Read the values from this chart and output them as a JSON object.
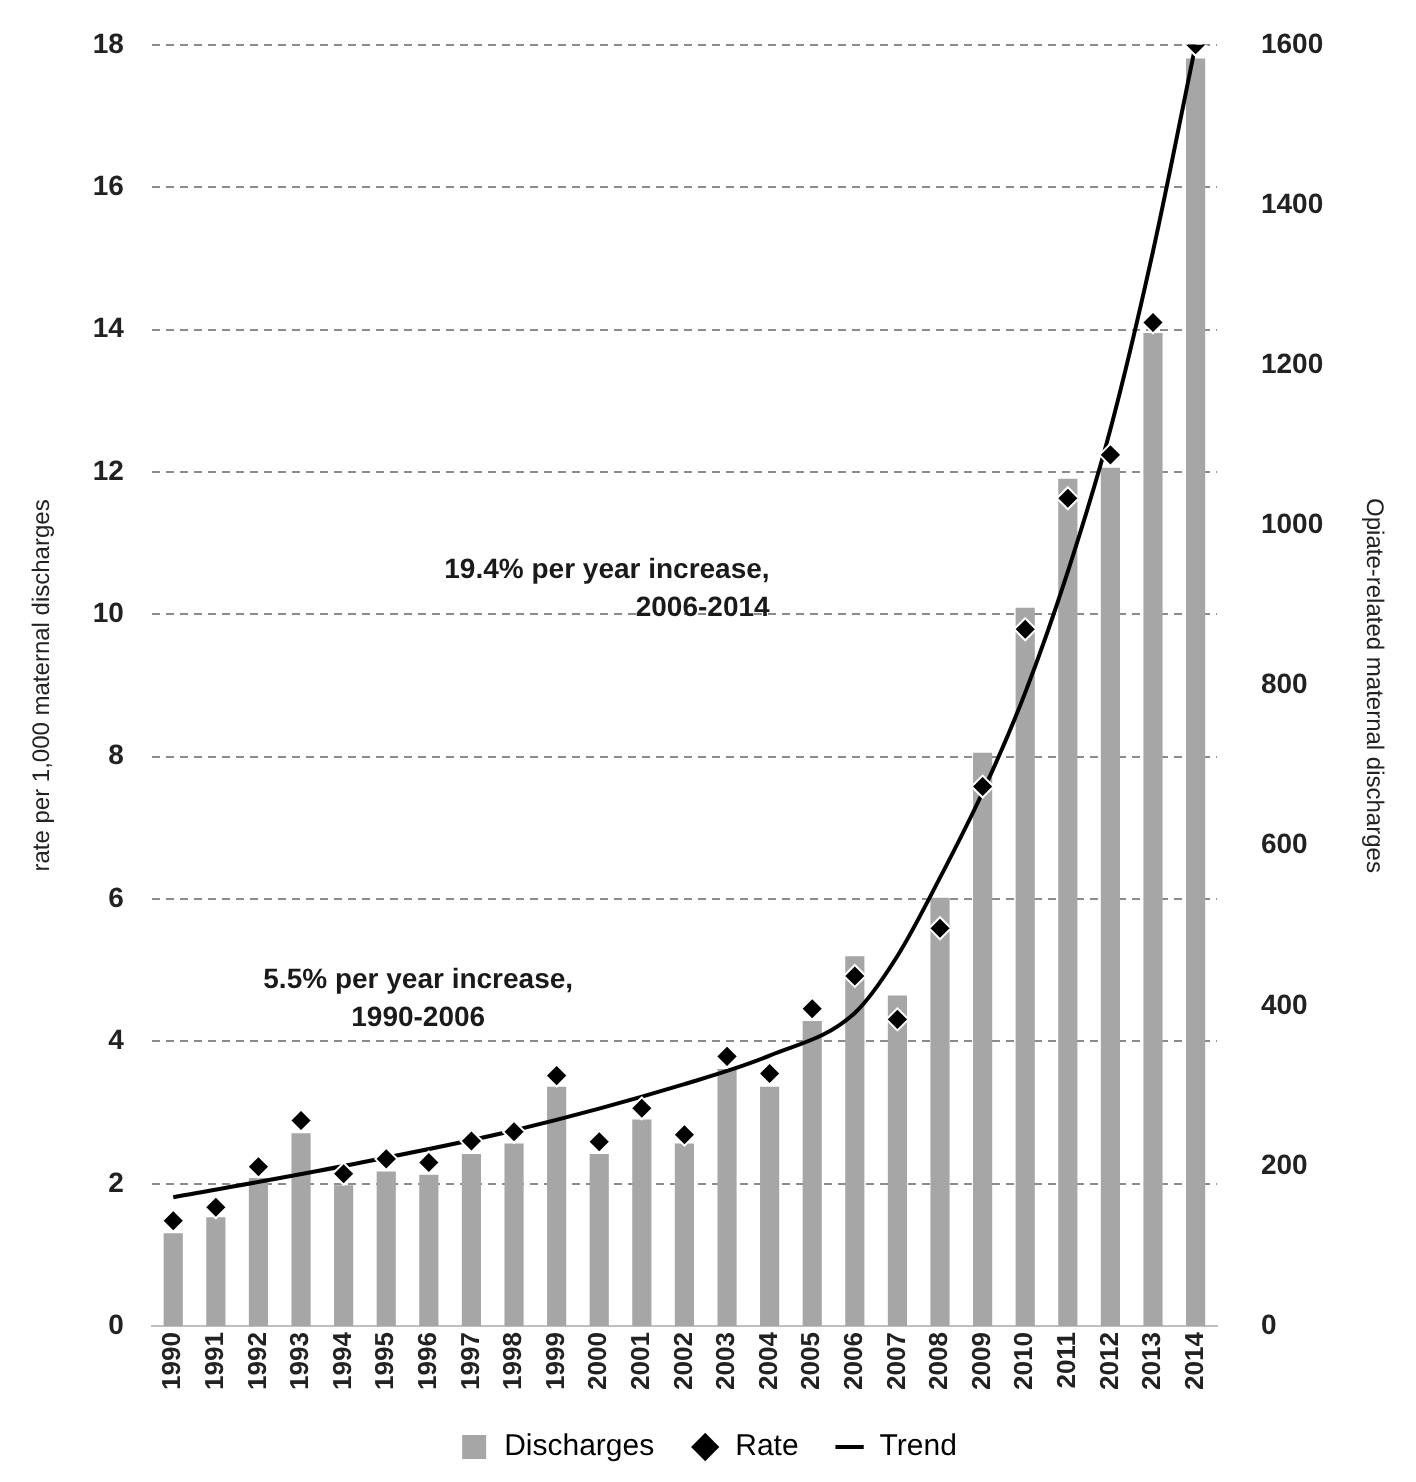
{
  "chart_data": {
    "type": "bar",
    "categories": [
      "1990",
      "1991",
      "1992",
      "1993",
      "1994",
      "1995",
      "1996",
      "1997",
      "1998",
      "1999",
      "2000",
      "2001",
      "2002",
      "2003",
      "2004",
      "2005",
      "2006",
      "2007",
      "2008",
      "2009",
      "2010",
      "2011",
      "2012",
      "2013",
      "2014"
    ],
    "ylabel": "rate per 1,000 maternal discharges",
    "y2label": "Opiate-related maternal discharges",
    "ylim": [
      0,
      18
    ],
    "yticks": [
      0,
      2,
      4,
      6,
      8,
      10,
      12,
      14,
      16,
      18
    ],
    "y2lim": [
      0,
      1600
    ],
    "y2ticks": [
      0,
      200,
      400,
      600,
      800,
      1000,
      1200,
      1400,
      1600
    ],
    "series": [
      {
        "name": "Discharges",
        "axis": "y2",
        "color": "#a6a6a6",
        "values": [
          116,
          136,
          185,
          241,
          176,
          193,
          189,
          215,
          228,
          299,
          215,
          258,
          228,
          321,
          299,
          381,
          462,
          413,
          535,
          716,
          897,
          1058,
          1072,
          1240,
          1583
        ]
      },
      {
        "name": "Rate",
        "type": "scatter",
        "axis": "y",
        "color": "#000000",
        "marker": "diamond",
        "values": [
          1.48,
          1.67,
          2.24,
          2.89,
          2.14,
          2.35,
          2.3,
          2.6,
          2.73,
          3.52,
          2.59,
          3.06,
          2.69,
          3.79,
          3.55,
          4.46,
          4.92,
          4.31,
          5.59,
          7.58,
          9.79,
          11.63,
          12.24,
          14.1,
          18.0
        ]
      },
      {
        "name": "Trend",
        "type": "line",
        "axis": "y",
        "color": "#000000",
        "marker": "none",
        "line_style": "solid",
        "values": [
          1.81,
          null,
          null,
          null,
          2.25,
          null,
          null,
          null,
          2.75,
          null,
          null,
          null,
          3.4,
          null,
          3.8,
          null,
          4.4,
          5.2,
          6.3,
          7.5,
          8.9,
          10.6,
          12.6,
          15.1,
          18.0
        ]
      }
    ],
    "annotations": [
      "5.5% per year increase,\n1990-2006",
      "19.4% per year increase,\n2006-2014"
    ],
    "grid": "y",
    "legend": "bottom"
  }
}
